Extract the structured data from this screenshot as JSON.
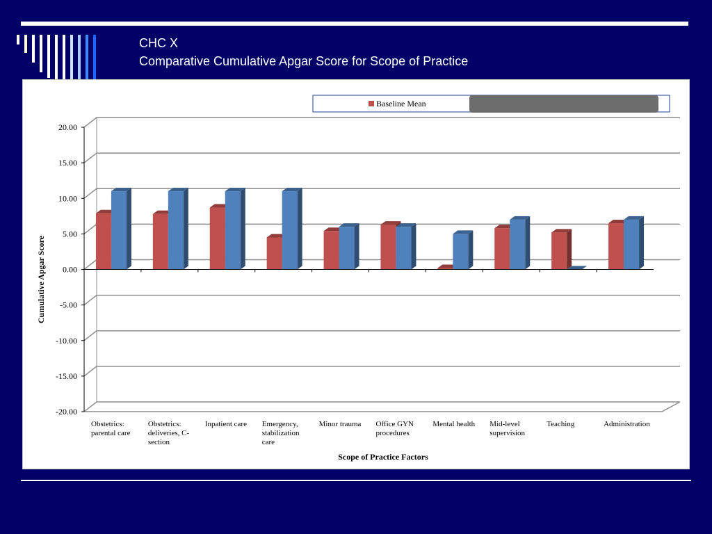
{
  "slide": {
    "title_line1": "CHC X",
    "title_line2": "Comparative Cumulative Apgar Score for Scope of Practice"
  },
  "colors": {
    "background": "#000066",
    "baseline_series": "#c0504d",
    "second_series": "#4f81bd",
    "stripes": [
      "#ffffff",
      "#ffffcc",
      "#ffffff",
      "#ffffff",
      "#ffffff",
      "#ffffff",
      "#ffffff",
      "#cfe3ff",
      "#a9ccff",
      "#3b8cff",
      "#1a66ff"
    ]
  },
  "chart_data": {
    "type": "bar",
    "xlabel": "Scope of Practice Factors",
    "ylabel": "Cumulative Apgar Score",
    "ylim": [
      -20,
      20
    ],
    "yticks": [
      20,
      15,
      10,
      5,
      0,
      -5,
      -10,
      -15,
      -20
    ],
    "ytick_labels": [
      "20.00",
      "15.00",
      "10.00",
      "5.00",
      "0.00",
      "-5.00",
      "-10.00",
      "-15.00",
      "-20.00"
    ],
    "grid": true,
    "legend_position": "top-right",
    "categories": [
      [
        "Obstetrics:",
        "parental care"
      ],
      [
        "Obstetrics:",
        "deliveries, C-",
        "section"
      ],
      [
        "Inpatient care"
      ],
      [
        "Emergency,",
        "stabilization",
        "care"
      ],
      [
        "Minor trauma"
      ],
      [
        "Office GYN",
        "procedures"
      ],
      [
        "Mental health"
      ],
      [
        "Mid-level",
        "supervision"
      ],
      [
        "Teaching"
      ],
      [
        "Administration"
      ]
    ],
    "series": [
      {
        "name": "Baseline Mean",
        "values": [
          7.9,
          7.8,
          8.7,
          4.5,
          5.4,
          6.3,
          0.2,
          5.8,
          5.2,
          6.5
        ]
      },
      {
        "values": [
          11.0,
          11.0,
          11.0,
          11.0,
          6.0,
          6.0,
          5.0,
          7.0,
          0.0,
          7.0
        ]
      }
    ]
  }
}
